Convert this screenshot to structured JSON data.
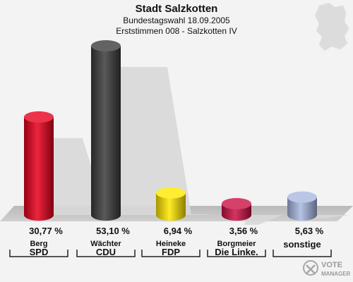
{
  "chart_data": {
    "type": "bar",
    "title": "Stadt Salzkotten",
    "subtitle_lines": [
      "Bundestagswahl 18.09.2005",
      "Erststimmen 008 - Salzkotten IV"
    ],
    "categories": [
      "SPD",
      "CDU",
      "FDP",
      "Die Linke.",
      "sonstige"
    ],
    "candidates": [
      "Berg",
      "Wächter",
      "Heineke",
      "Borgmeier",
      ""
    ],
    "values": [
      30.77,
      53.1,
      6.94,
      3.56,
      5.63
    ],
    "value_labels": [
      "30,77 %",
      "53,10 %",
      "6,94 %",
      "3,56 %",
      "5,63 %"
    ],
    "colors": [
      "#e8001c",
      "#3c3c3c",
      "#ffe800",
      "#cc1144",
      "#a8b8e0"
    ],
    "ylim": [
      0,
      53.1
    ]
  },
  "logo": {
    "line1": "VOTE",
    "line2": "MANAGER"
  },
  "icons": [
    "germany-map-icon",
    "vote-manager-logo-icon"
  ]
}
